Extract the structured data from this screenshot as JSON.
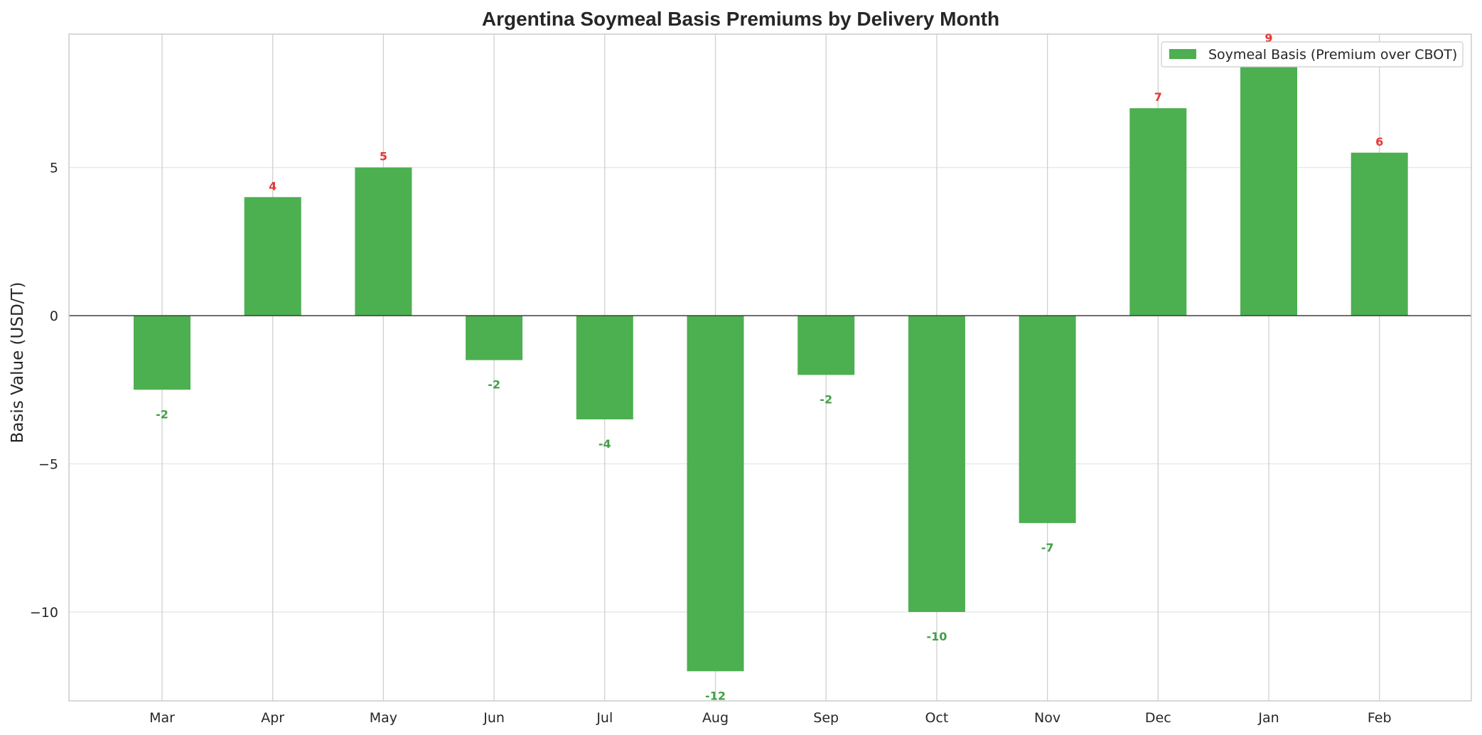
{
  "chart_data": {
    "type": "bar",
    "title": "Argentina Soymeal Basis Premiums by Delivery Month",
    "xlabel": "",
    "ylabel": "Basis Value (USD/T)",
    "categories": [
      "Mar",
      "Apr",
      "May",
      "Jun",
      "Jul",
      "Aug",
      "Sep",
      "Oct",
      "Nov",
      "Dec",
      "Jan",
      "Feb"
    ],
    "series": [
      {
        "name": "Soymeal Basis (Premium over CBOT)",
        "values": [
          -2.5,
          4,
          5,
          -1.5,
          -3.5,
          -12,
          -2,
          -10,
          -7,
          7,
          9,
          5.5
        ]
      }
    ],
    "data_labels": [
      "-2",
      "4",
      "5",
      "-2",
      "-4",
      "-12",
      "-2",
      "-10",
      "-7",
      "7",
      "9",
      "6"
    ],
    "ylim": [
      -13,
      9.5
    ],
    "yticks": [
      5,
      0,
      -5,
      -10
    ],
    "ytick_labels": [
      "5",
      "0",
      "−5",
      "−10"
    ],
    "grid": true,
    "legend_position": "top-right",
    "colors": {
      "bar": "#4caf50",
      "positive_label": "#e53935",
      "negative_label": "#43a047",
      "grid": "#e6e6e6",
      "zero_line": "#333333",
      "spine": "#cccccc"
    }
  }
}
